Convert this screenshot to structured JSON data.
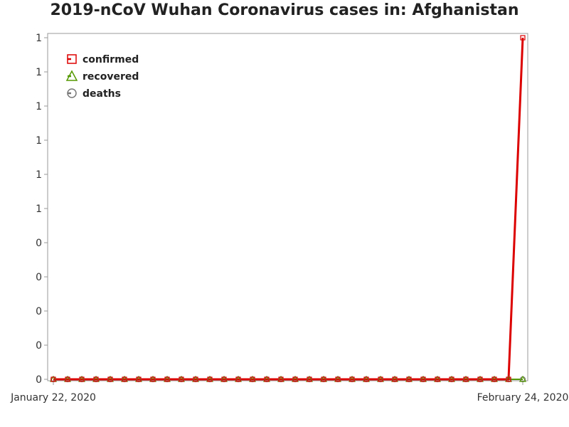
{
  "chart_data": {
    "type": "line",
    "title": "2019-nCoV Wuhan Coronavirus cases in: Afghanistan",
    "xlabel": "",
    "ylabel": "",
    "x_start": "January 22, 2020",
    "x_end": "February 24, 2020",
    "x_tick_labels": [
      "January 22, 2020",
      "February 24, 2020"
    ],
    "y_tick_labels": [
      "0",
      "0",
      "0",
      "0",
      "0",
      "1",
      "1",
      "1",
      "1",
      "1",
      "1"
    ],
    "ylim": [
      0,
      1
    ],
    "grid": false,
    "legend_position": "top-left",
    "series": [
      {
        "name": "confirmed",
        "color": "#dd0000",
        "marker": "square",
        "values": [
          0,
          0,
          0,
          0,
          0,
          0,
          0,
          0,
          0,
          0,
          0,
          0,
          0,
          0,
          0,
          0,
          0,
          0,
          0,
          0,
          0,
          0,
          0,
          0,
          0,
          0,
          0,
          0,
          0,
          0,
          0,
          0,
          0,
          1
        ]
      },
      {
        "name": "recovered",
        "color": "#559900",
        "marker": "triangle",
        "values": [
          0,
          0,
          0,
          0,
          0,
          0,
          0,
          0,
          0,
          0,
          0,
          0,
          0,
          0,
          0,
          0,
          0,
          0,
          0,
          0,
          0,
          0,
          0,
          0,
          0,
          0,
          0,
          0,
          0,
          0,
          0,
          0,
          0,
          0
        ]
      },
      {
        "name": "deaths",
        "color": "#777777",
        "marker": "circle",
        "values": [
          0,
          0,
          0,
          0,
          0,
          0,
          0,
          0,
          0,
          0,
          0,
          0,
          0,
          0,
          0,
          0,
          0,
          0,
          0,
          0,
          0,
          0,
          0,
          0,
          0,
          0,
          0,
          0,
          0,
          0,
          0,
          0,
          0,
          0
        ]
      }
    ]
  }
}
